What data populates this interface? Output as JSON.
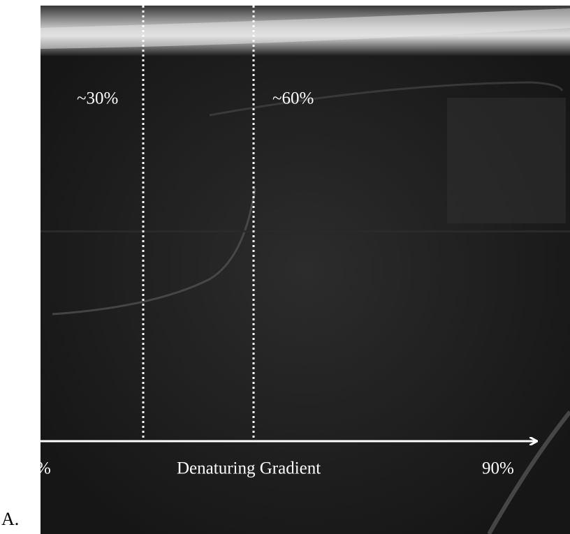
{
  "panel_label": "A.",
  "markers": {
    "left": "~30%",
    "right": "~60%"
  },
  "gradient_axis": {
    "start_label": "%",
    "title": "Denaturing Gradient",
    "end_label": "90%"
  }
}
